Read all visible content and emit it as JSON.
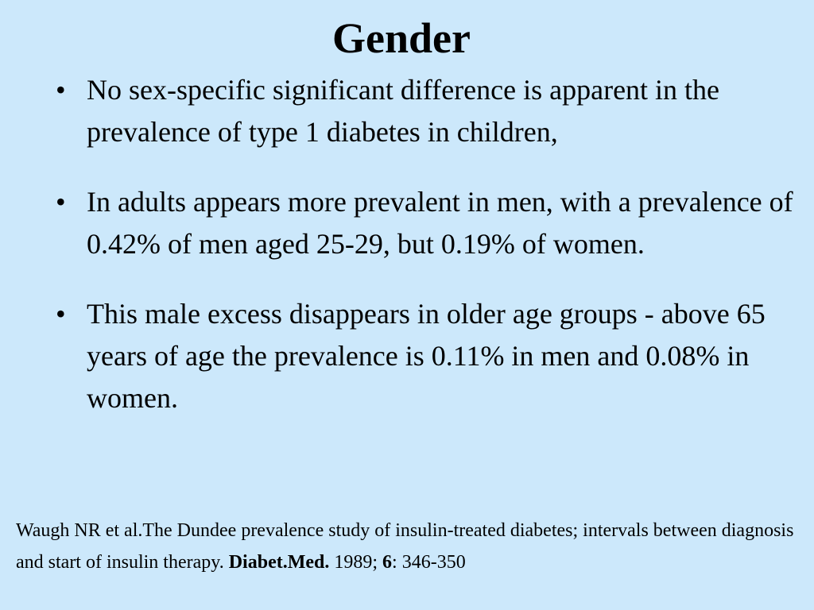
{
  "slide": {
    "title": "Gender",
    "bullets": [
      {
        "text": "No sex-specific significant difference is apparent in the prevalence of type 1 diabetes in children,"
      },
      {
        "text": "In adults appears more prevalent in men, with a prevalence of 0.42% of men aged 25-29, but 0.19% of women."
      },
      {
        "text": "This male excess disappears in older age groups - above 65 years of age the prevalence is 0.11% in men and 0.08% in women."
      }
    ],
    "bullet_glyph": "•",
    "reference": {
      "main": "Waugh NR et al.The Dundee prevalence study of insulin-treated diabetes; intervals between diagnosis and start of insulin therapy.  ",
      "journal": "Diabet.Med.",
      "year": " 1989; ",
      "volume": "6",
      "pages": ": 346-350"
    }
  }
}
